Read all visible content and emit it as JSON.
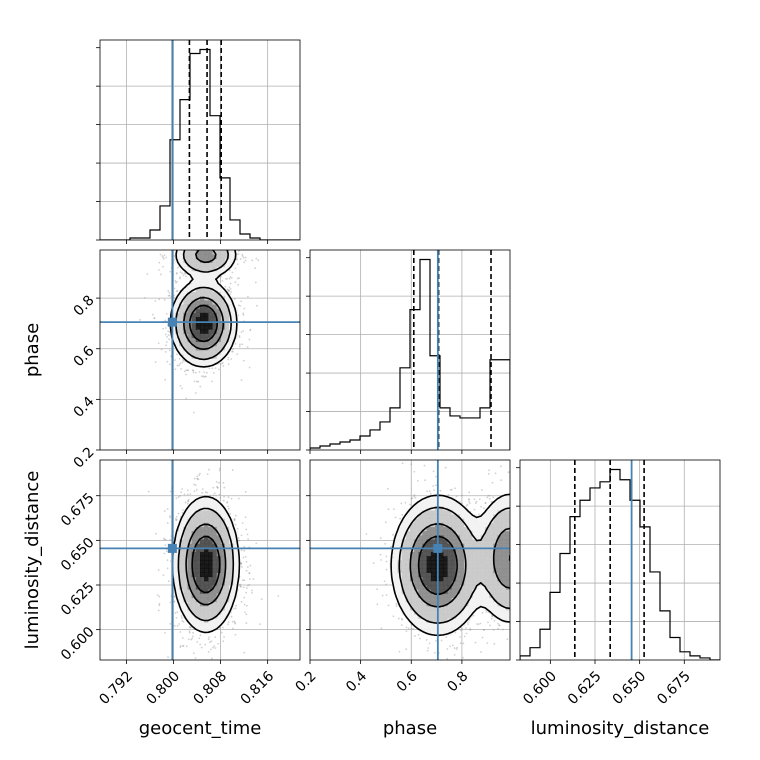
{
  "chart_data": {
    "type": "corner",
    "parameters": [
      "geocent_time",
      "phase",
      "luminosity_distance"
    ],
    "truths": {
      "geocent_time": 0.7998,
      "phase": 0.705,
      "luminosity_distance": 0.6455
    },
    "colors": {
      "truth": "#4682b4",
      "contour": "#000000",
      "grid": "#b0b0b0",
      "scatter": "#9a9a9a"
    },
    "grid": true,
    "quantiles": [
      0.16,
      0.5,
      0.84
    ],
    "axes": {
      "geocent_time": {
        "range": [
          0.7875,
          0.8215
        ],
        "ticks": [
          0.792,
          0.8,
          0.808,
          0.816
        ],
        "tick_labels": [
          "0.792",
          "0.800",
          "0.808",
          "0.816"
        ],
        "label": "geocent_time"
      },
      "phase": {
        "range": [
          0.2,
          0.99
        ],
        "ticks": [
          0.2,
          0.4,
          0.6,
          0.8
        ],
        "tick_labels": [
          "0.2",
          "0.4",
          "0.6",
          "0.8"
        ],
        "label": "phase"
      },
      "luminosity_distance": {
        "range": [
          0.583,
          0.695
        ],
        "ticks": [
          0.6,
          0.625,
          0.65,
          0.675
        ],
        "tick_labels": [
          "0.600",
          "0.625",
          "0.650",
          "0.675"
        ],
        "label": "luminosity_distance"
      }
    },
    "histograms": [
      {
        "parameter": "geocent_time",
        "bin_edges": [
          0.7875,
          0.7892,
          0.7909,
          0.7926,
          0.7943,
          0.796,
          0.7977,
          0.7994,
          0.8011,
          0.8028,
          0.8045,
          0.8062,
          0.8079,
          0.8096,
          0.8113,
          0.813,
          0.8147,
          0.8164,
          0.8181,
          0.8198,
          0.8215
        ],
        "counts": [
          0,
          0,
          0,
          1,
          1,
          5,
          17,
          50,
          70,
          93,
          95,
          62,
          31,
          10,
          3,
          1,
          0,
          0,
          0,
          0
        ],
        "quantile_values": [
          0.8027,
          0.8057,
          0.8081
        ]
      },
      {
        "parameter": "phase",
        "bin_edges": [
          0.2,
          0.2395,
          0.279,
          0.3185,
          0.358,
          0.3975,
          0.437,
          0.4765,
          0.516,
          0.5555,
          0.595,
          0.6345,
          0.674,
          0.7135,
          0.753,
          0.7925,
          0.832,
          0.8715,
          0.911,
          0.9505,
          0.99
        ],
        "counts": [
          1,
          2,
          3,
          4,
          5,
          7,
          10,
          14,
          21,
          41,
          70,
          95,
          47,
          21,
          17,
          16,
          16,
          21,
          45,
          45
        ],
        "quantile_values": [
          0.61,
          0.708,
          0.915
        ]
      },
      {
        "parameter": "luminosity_distance",
        "bin_edges": [
          0.583,
          0.5886,
          0.5942,
          0.5998,
          0.6054,
          0.611,
          0.6166,
          0.6222,
          0.6278,
          0.6334,
          0.639,
          0.6446,
          0.6502,
          0.6558,
          0.6614,
          0.667,
          0.6726,
          0.6782,
          0.6838,
          0.6894,
          0.695
        ],
        "counts": [
          2,
          6,
          15,
          33,
          52,
          70,
          78,
          84,
          87,
          93,
          88,
          78,
          65,
          43,
          24,
          11,
          4,
          2,
          1,
          0
        ],
        "quantile_values": [
          0.6137,
          0.6335,
          0.6525
        ]
      }
    ],
    "density_2d": [
      {
        "x": "geocent_time",
        "y": "phase",
        "components": [
          {
            "center": [
              0.8051,
              0.7
            ],
            "sigma": [
              0.0023,
              0.07
            ],
            "weight": 1.0
          },
          {
            "center": [
              0.8055,
              0.97
            ],
            "sigma": [
              0.0024,
              0.04
            ],
            "weight": 0.45
          }
        ]
      },
      {
        "x": "geocent_time",
        "y": "luminosity_distance",
        "components": [
          {
            "center": [
              0.8055,
              0.6365
            ],
            "sigma": [
              0.0023,
              0.0155
            ],
            "weight": 1.0
          }
        ]
      },
      {
        "x": "phase",
        "y": "luminosity_distance",
        "components": [
          {
            "center": [
              0.705,
              0.636
            ],
            "sigma": [
              0.075,
              0.016
            ],
            "weight": 1.0
          },
          {
            "center": [
              0.99,
              0.64
            ],
            "sigma": [
              0.06,
              0.016
            ],
            "weight": 0.6
          }
        ]
      }
    ]
  }
}
